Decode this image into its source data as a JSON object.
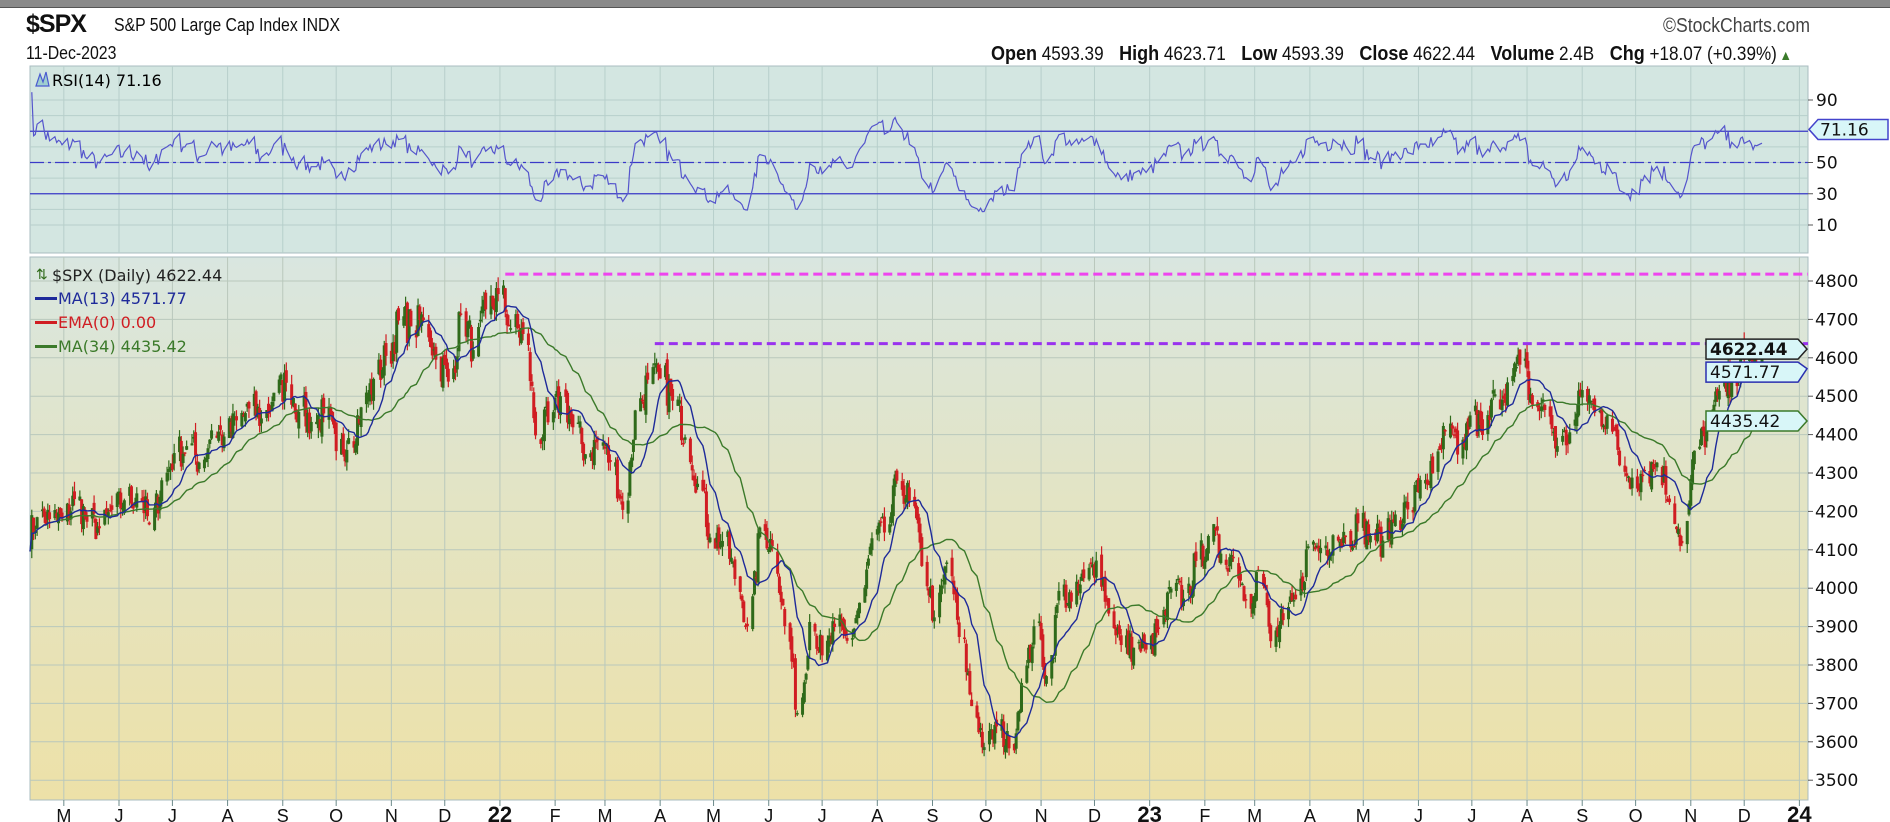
{
  "header": {
    "symbol": "$SPX",
    "name": "S&P 500 Large Cap Index  INDX",
    "date": "11-Dec-2023",
    "copyright": "©StockCharts.com",
    "open_label": "Open",
    "open": "4593.39",
    "high_label": "High",
    "high": "4623.71",
    "low_label": "Low",
    "low": "4593.39",
    "close_label": "Close",
    "close": "4622.44",
    "volume_label": "Volume",
    "volume": "2.4B",
    "chg_label": "Chg",
    "chg": "+18.07 (+0.39%)",
    "chg_icon": "up-triangle-icon"
  },
  "chart_data": [
    {
      "type": "line",
      "panel": "RSI",
      "legend": "RSI(14) 71.16",
      "current_value": "71.16",
      "ylim": [
        0,
        100
      ],
      "yticks": [
        "90",
        "50",
        "30",
        "10"
      ],
      "reference_lines": [
        70,
        50,
        30
      ],
      "color": "#5555cc"
    },
    {
      "type": "candlestick",
      "panel": "price",
      "legend": [
        {
          "label": "$SPX (Daily) 4622.44",
          "color": "#222222"
        },
        {
          "label": "MA(13) 4571.77",
          "color": "#1e2a9a"
        },
        {
          "label": "EMA(0) 0.00",
          "color": "#d01d22"
        },
        {
          "label": "MA(34) 4435.42",
          "color": "#3b7a2a"
        }
      ],
      "ylim": [
        3480,
        4850
      ],
      "yticks": [
        "4800",
        "4700",
        "4600",
        "4500",
        "4400",
        "4300",
        "4200",
        "4100",
        "4000",
        "3900",
        "3800",
        "3700",
        "3600",
        "3500"
      ],
      "tags": [
        {
          "value": 4622.44,
          "label": "4622.44",
          "color": "#222222"
        },
        {
          "value": 4571.77,
          "label": "4571.77",
          "color": "#2a2fb0"
        },
        {
          "value": 4435.42,
          "label": "4435.42",
          "color": "#3b7a2a"
        }
      ],
      "resistance_lines": [
        {
          "value": 4818,
          "from": "2022-01-04",
          "color": "#ee44ee"
        },
        {
          "value": 4637,
          "from": "2022-03-29",
          "color": "#9933ee"
        }
      ],
      "up_color": "#2f6a1a",
      "down_color": "#d01d22",
      "x_range": [
        "2021-04-12",
        "2023-12-11"
      ],
      "weekly_closes_start": "2021-04-16",
      "weekly_closes": [
        4185,
        4180,
        4181,
        4232,
        4173,
        4156,
        4204,
        4229,
        4247,
        4166,
        4281,
        4352,
        4370,
        4327,
        4411,
        4395,
        4437,
        4468,
        4442,
        4509,
        4535,
        4459,
        4433,
        4455,
        4357,
        4391,
        4471,
        4545,
        4605,
        4697,
        4682,
        4698,
        4595,
        4538,
        4712,
        4620,
        4726,
        4766,
        4677,
        4662,
        4398,
        4432,
        4500,
        4419,
        4349,
        4385,
        4329,
        4204,
        4463,
        4543,
        4546,
        4488,
        4393,
        4272,
        4132,
        4123,
        4024,
        3901,
        4158,
        4109,
        3901,
        3675,
        3912,
        3825,
        3899,
        3863,
        3962,
        4130,
        4145,
        4280,
        4228,
        4058,
        3924,
        4067,
        3873,
        3693,
        3586,
        3640,
        3583,
        3753,
        3901,
        3771,
        3993,
        3965,
        4026,
        4072,
        3934,
        3852,
        3845,
        3840,
        3895,
        3999,
        3973,
        4071,
        4136,
        4090,
        4079,
        3970,
        4046,
        3862,
        3917,
        3971,
        4109,
        4105,
        4138,
        4133,
        4169,
        4136,
        4124,
        4192,
        4205,
        4282,
        4299,
        4410,
        4348,
        4450,
        4399,
        4505,
        4536,
        4582,
        4478,
        4464,
        4370,
        4406,
        4516,
        4457,
        4450,
        4320,
        4288,
        4308,
        4327,
        4224,
        4117,
        4358,
        4415,
        4514,
        4559,
        4595,
        4604
      ],
      "last": {
        "date": "2023-12-11",
        "close": 4622.44
      },
      "x_labels": [
        {
          "label": "M",
          "date": "2021-05-01"
        },
        {
          "label": "J",
          "date": "2021-06-01"
        },
        {
          "label": "J",
          "date": "2021-07-01"
        },
        {
          "label": "A",
          "date": "2021-08-01"
        },
        {
          "label": "S",
          "date": "2021-09-01"
        },
        {
          "label": "O",
          "date": "2021-10-01"
        },
        {
          "label": "N",
          "date": "2021-11-01"
        },
        {
          "label": "D",
          "date": "2021-12-01"
        },
        {
          "label": "22",
          "date": "2022-01-01",
          "bold": true
        },
        {
          "label": "F",
          "date": "2022-02-01"
        },
        {
          "label": "M",
          "date": "2022-03-01"
        },
        {
          "label": "A",
          "date": "2022-04-01"
        },
        {
          "label": "M",
          "date": "2022-05-01"
        },
        {
          "label": "J",
          "date": "2022-06-01"
        },
        {
          "label": "J",
          "date": "2022-07-01"
        },
        {
          "label": "A",
          "date": "2022-08-01"
        },
        {
          "label": "S",
          "date": "2022-09-01"
        },
        {
          "label": "O",
          "date": "2022-10-01"
        },
        {
          "label": "N",
          "date": "2022-11-01"
        },
        {
          "label": "D",
          "date": "2022-12-01"
        },
        {
          "label": "23",
          "date": "2023-01-01",
          "bold": true
        },
        {
          "label": "F",
          "date": "2023-02-01"
        },
        {
          "label": "M",
          "date": "2023-03-01"
        },
        {
          "label": "A",
          "date": "2023-04-01"
        },
        {
          "label": "M",
          "date": "2023-05-01"
        },
        {
          "label": "J",
          "date": "2023-06-01"
        },
        {
          "label": "J",
          "date": "2023-07-01"
        },
        {
          "label": "A",
          "date": "2023-08-01"
        },
        {
          "label": "S",
          "date": "2023-09-01"
        },
        {
          "label": "O",
          "date": "2023-10-01"
        },
        {
          "label": "N",
          "date": "2023-11-01"
        },
        {
          "label": "D",
          "date": "2023-12-01"
        },
        {
          "label": "24",
          "date": "2024-01-01",
          "bold": true
        }
      ]
    }
  ]
}
